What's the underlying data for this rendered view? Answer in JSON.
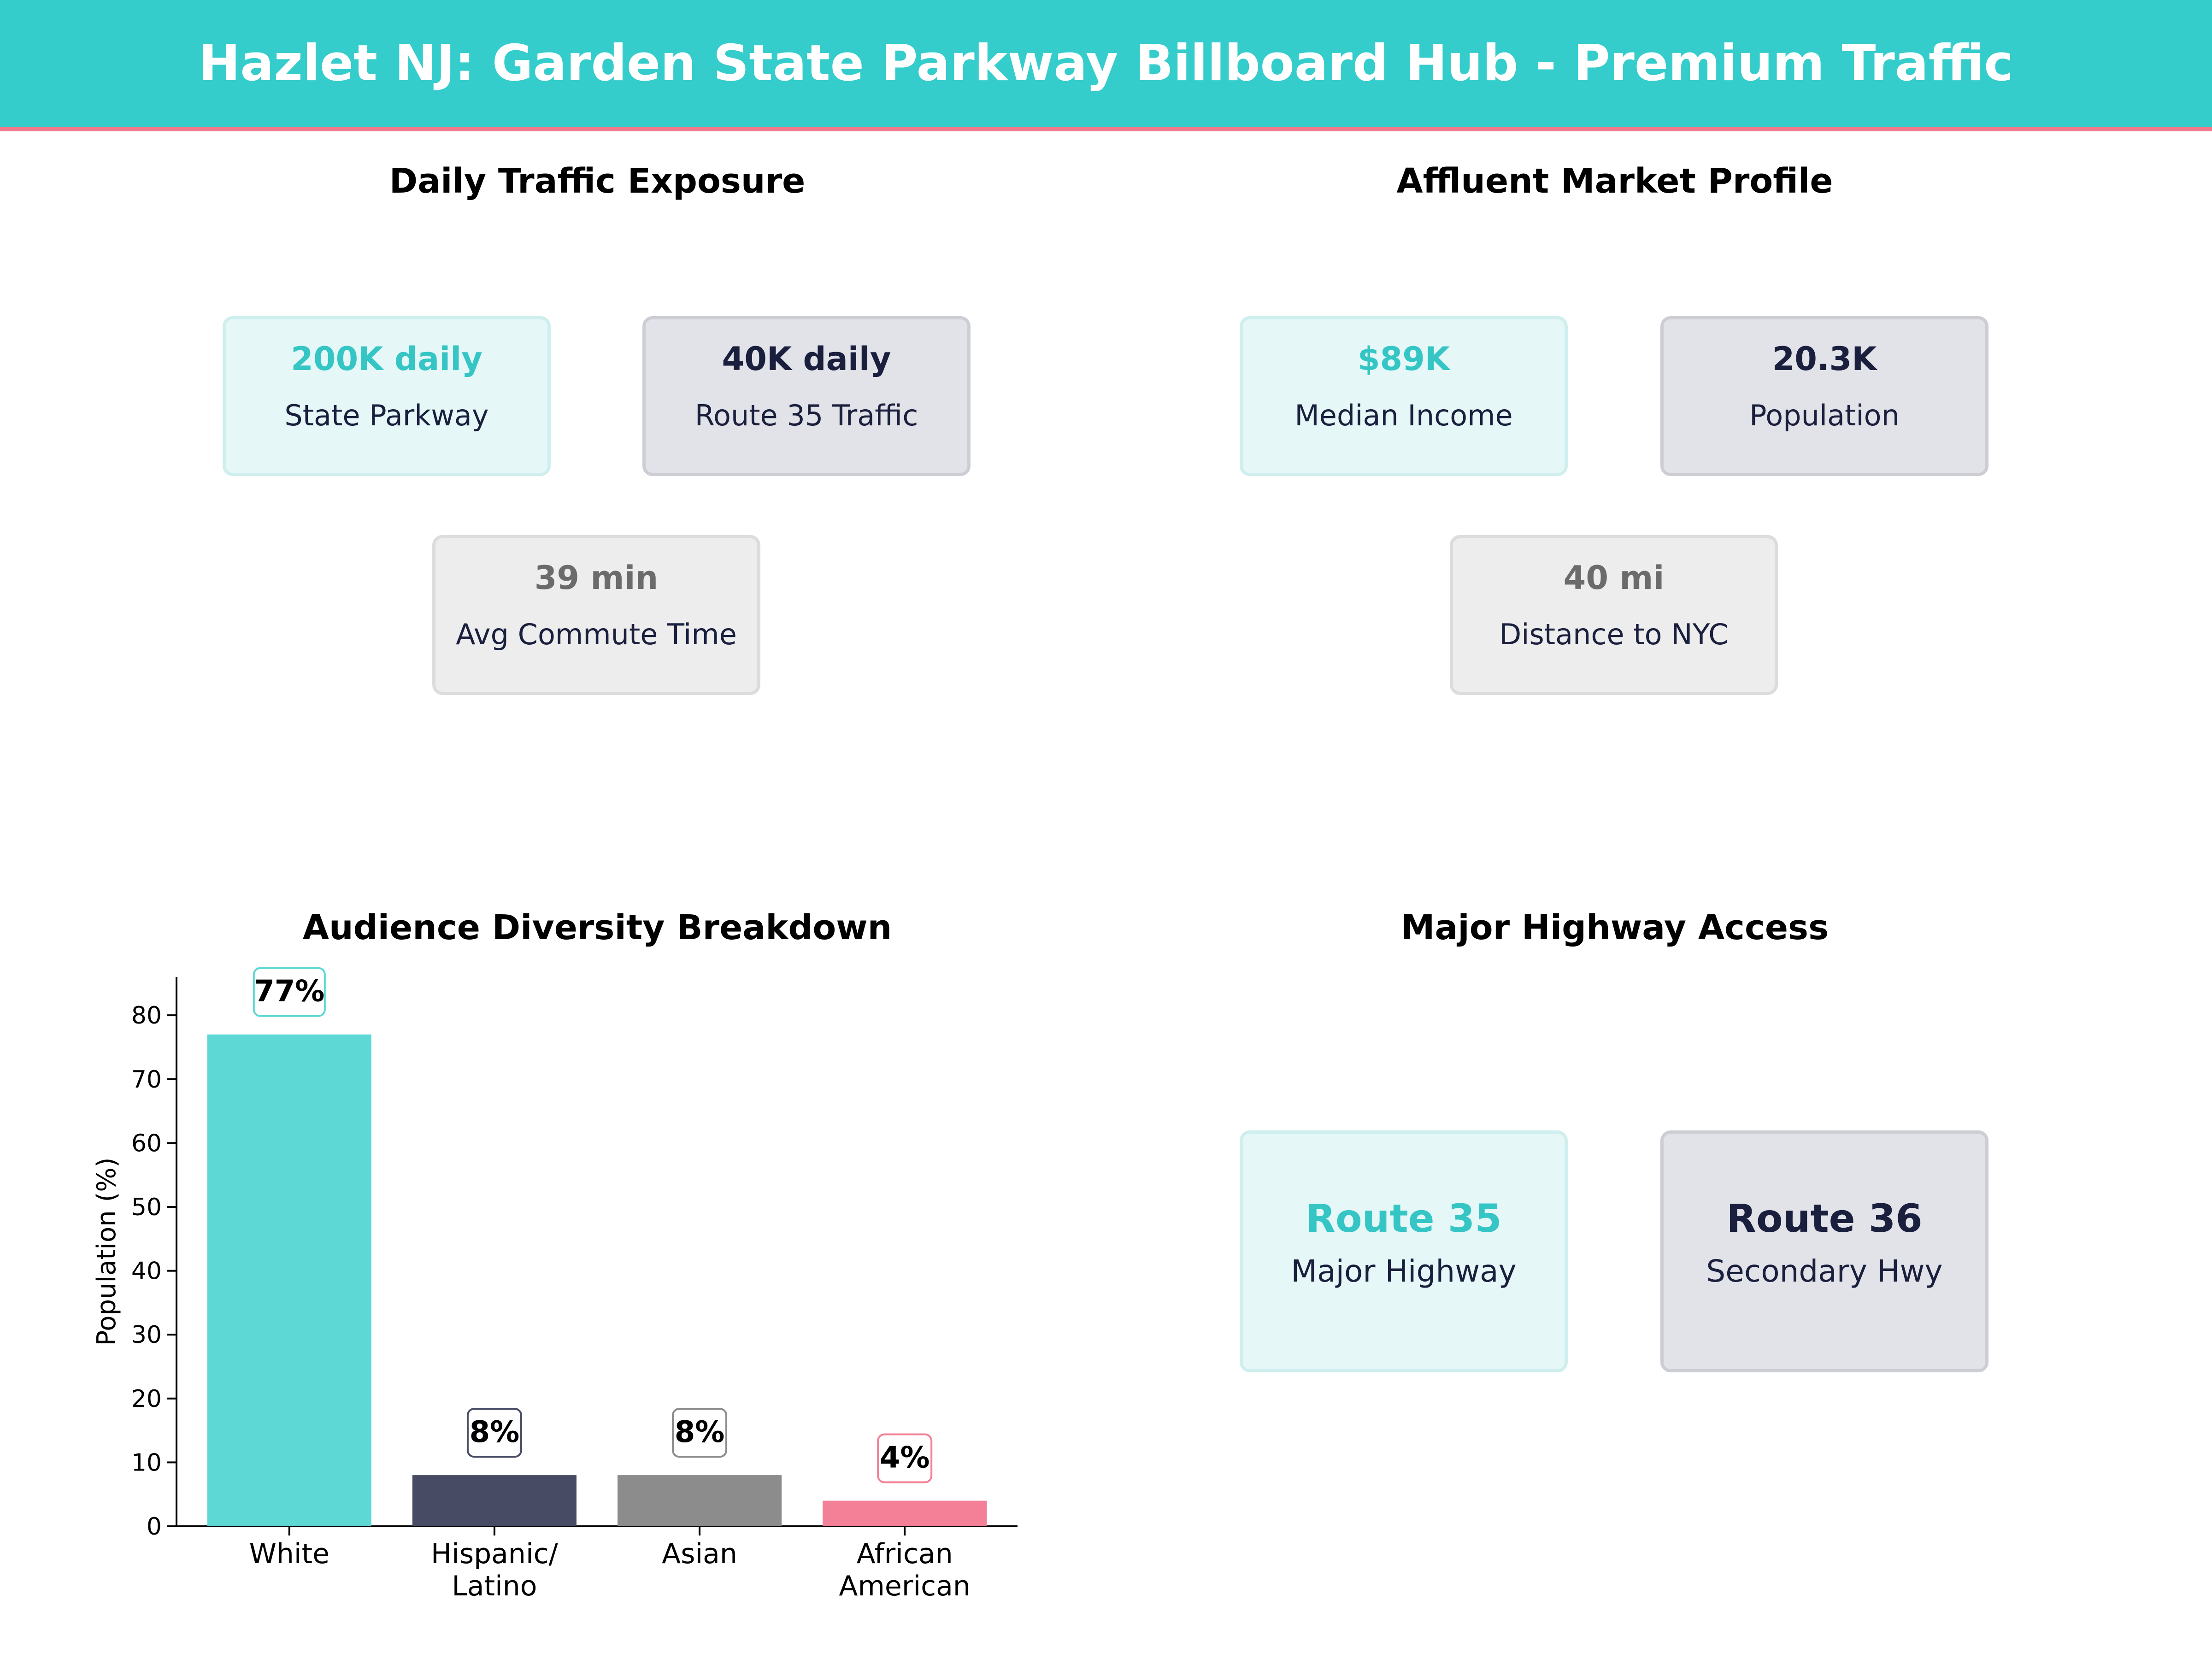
{
  "header": {
    "title": "Hazlet NJ: Garden State Parkway Billboard Hub - Premium Traffic"
  },
  "colors": {
    "teal": "#35cccc",
    "navy": "#1a1f3d",
    "grey": "#6b6b6b",
    "pink": "#f17a8f"
  },
  "traffic": {
    "title": "Daily Traffic Exposure",
    "cards": [
      {
        "value": "200K daily",
        "label": "State Parkway"
      },
      {
        "value": "40K daily",
        "label": "Route 35 Traffic"
      },
      {
        "value": "39 min",
        "label": "Avg Commute Time"
      }
    ]
  },
  "market": {
    "title": "Affluent Market Profile",
    "cards": [
      {
        "value": "$89K",
        "label": "Median Income"
      },
      {
        "value": "20.3K",
        "label": "Population"
      },
      {
        "value": "40 mi",
        "label": "Distance to NYC"
      }
    ]
  },
  "highway": {
    "title": "Major Highway Access",
    "cards": [
      {
        "value": "Route 35",
        "label": "Major Highway"
      },
      {
        "value": "Route 36",
        "label": "Secondary Hwy"
      }
    ]
  },
  "chart_data": {
    "type": "bar",
    "title": "Audience Diversity Breakdown",
    "categories": [
      [
        "White"
      ],
      [
        "Hispanic/",
        "Latino"
      ],
      [
        "Asian"
      ],
      [
        "African",
        "American"
      ]
    ],
    "values": [
      77,
      8,
      8,
      4
    ],
    "value_labels": [
      "77%",
      "8%",
      "8%",
      "4%"
    ],
    "colors": [
      "#5dd8d5",
      "#474c64",
      "#8c8c8c",
      "#f38096"
    ],
    "label_border_colors": [
      "#5dd8d5",
      "#474c64",
      "#8c8c8c",
      "#f38096"
    ],
    "ylabel": "Population (%)",
    "xlabel": "",
    "ylim": [
      0,
      86
    ],
    "yticks": [
      0,
      10,
      20,
      30,
      40,
      50,
      60,
      70,
      80
    ],
    "grid": false
  }
}
